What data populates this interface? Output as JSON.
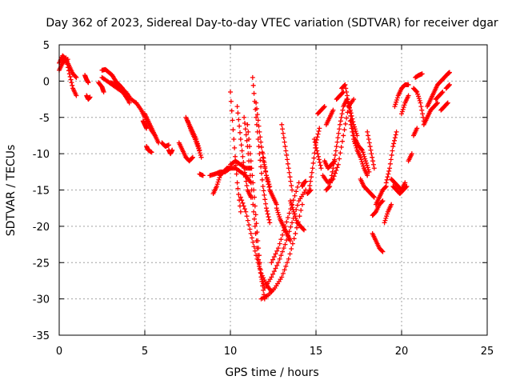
{
  "chart_data": {
    "type": "scatter",
    "title": "Day 362 of 2023, Sidereal Day-to-day VTEC variation (SDTVAR) for receiver dgar",
    "xlabel": "GPS time / hours",
    "ylabel": "SDTVAR / TECUs",
    "xlim": [
      0,
      25
    ],
    "ylim": [
      -35,
      5
    ],
    "x_ticks": [
      0,
      5,
      10,
      15,
      20,
      25
    ],
    "y_ticks": [
      5,
      0,
      -5,
      -10,
      -15,
      -20,
      -25,
      -30,
      -35
    ],
    "grid": true,
    "marker": "+",
    "color": "#ff0000",
    "series": [
      {
        "x": [
          0.0,
          0.2,
          0.4,
          0.6,
          0.8,
          1.0
        ],
        "y": [
          2.5,
          3.5,
          3.0,
          2.0,
          1.0,
          0.5
        ]
      },
      {
        "x": [
          0.2,
          0.4,
          0.6,
          0.8,
          1.0
        ],
        "y": [
          2.8,
          3.2,
          1.0,
          -1.0,
          -2.0
        ]
      },
      {
        "x": [
          0.0,
          0.2,
          0.5
        ],
        "y": [
          1.5,
          2.5,
          3.0
        ]
      },
      {
        "x": [
          1.5,
          1.6,
          1.7
        ],
        "y": [
          0.8,
          0.2,
          -0.2
        ]
      },
      {
        "x": [
          1.6,
          1.7,
          1.8
        ],
        "y": [
          -2.0,
          -2.5,
          -2.2
        ]
      },
      {
        "x": [
          2.3,
          2.5,
          2.6
        ],
        "y": [
          -0.2,
          -0.8,
          -1.5
        ]
      },
      {
        "x": [
          2.5,
          2.7,
          2.9,
          3.1,
          3.3,
          3.5
        ],
        "y": [
          1.5,
          1.6,
          1.2,
          0.8,
          0.0,
          -0.5
        ]
      },
      {
        "x": [
          2.5,
          2.8,
          3.1,
          3.4,
          3.7,
          4.0
        ],
        "y": [
          0.5,
          0.0,
          -0.5,
          -1.0,
          -1.5,
          -2.5
        ]
      },
      {
        "x": [
          3.0,
          3.3,
          3.6,
          3.9,
          4.2,
          4.5
        ],
        "y": [
          -0.2,
          -0.5,
          -1.0,
          -1.5,
          -2.5,
          -3.0
        ]
      },
      {
        "x": [
          3.5,
          3.7,
          3.9,
          4.1
        ],
        "y": [
          -0.5,
          -1.0,
          -2.0,
          -3.0
        ]
      },
      {
        "x": [
          4.5,
          4.8,
          5.0,
          5.3,
          5.6
        ],
        "y": [
          -3.0,
          -4.0,
          -5.0,
          -6.5,
          -7.5
        ]
      },
      {
        "x": [
          5.0,
          5.2,
          5.4,
          5.6,
          5.8
        ],
        "y": [
          -4.5,
          -5.5,
          -6.5,
          -7.5,
          -8.5
        ]
      },
      {
        "x": [
          4.9,
          5.0,
          5.1
        ],
        "y": [
          -5.5,
          -6.0,
          -6.5
        ]
      },
      {
        "x": [
          5.1,
          5.2,
          5.4
        ],
        "y": [
          -9.0,
          -9.5,
          -9.8
        ]
      },
      {
        "x": [
          6.0,
          6.2,
          6.4
        ],
        "y": [
          -8.5,
          -9.0,
          -8.8
        ]
      },
      {
        "x": [
          6.4,
          6.5,
          6.6
        ],
        "y": [
          -9.5,
          -10.0,
          -9.5
        ]
      },
      {
        "x": [
          7.0,
          7.2,
          7.4,
          7.6,
          7.8
        ],
        "y": [
          -8.5,
          -9.5,
          -10.5,
          -11.0,
          -10.5
        ]
      },
      {
        "x": [
          7.4,
          7.6,
          7.8,
          8.0,
          8.2
        ],
        "y": [
          -5.0,
          -6.0,
          -7.0,
          -8.0,
          -9.5
        ]
      },
      {
        "x": [
          7.5,
          7.7,
          7.9,
          8.1,
          8.3
        ],
        "y": [
          -5.5,
          -6.8,
          -7.8,
          -9.0,
          -10.5
        ]
      },
      {
        "x": [
          8.2,
          8.4
        ],
        "y": [
          -12.8,
          -13.0
        ]
      },
      {
        "x": [
          9.0,
          9.2,
          9.4,
          9.6,
          9.8,
          10.0
        ],
        "y": [
          -15.5,
          -14.5,
          -13.0,
          -12.5,
          -12.0,
          -12.0
        ]
      },
      {
        "x": [
          8.8,
          9.1,
          9.4,
          9.7,
          10.0
        ],
        "y": [
          -13.0,
          -12.8,
          -12.5,
          -12.5,
          -12.0
        ]
      },
      {
        "x": [
          10.0,
          10.3,
          10.6,
          10.9,
          11.2
        ],
        "y": [
          -12.0,
          -12.0,
          -12.5,
          -13.0,
          -14.0
        ]
      },
      {
        "x": [
          10.0,
          10.3,
          10.6,
          10.9,
          11.2
        ],
        "y": [
          -11.5,
          -11.0,
          -11.5,
          -12.0,
          -12.0
        ]
      },
      {
        "x": [
          10.0,
          10.2,
          10.4,
          10.6
        ],
        "y": [
          -1.5,
          -8.0,
          -14.0,
          -18.0
        ]
      },
      {
        "x": [
          10.4,
          10.6,
          10.8,
          11.0,
          11.2
        ],
        "y": [
          -3.5,
          -8.0,
          -12.0,
          -15.0,
          -16.0
        ]
      },
      {
        "x": [
          10.8,
          11.0,
          11.2,
          11.4,
          11.6,
          11.8,
          12.0
        ],
        "y": [
          -5.0,
          -9.0,
          -14.0,
          -19.0,
          -24.0,
          -27.0,
          -28.5
        ]
      },
      {
        "x": [
          11.0,
          11.2,
          11.4,
          11.6,
          11.8,
          12.0
        ],
        "y": [
          -6.0,
          -11.0,
          -16.0,
          -22.0,
          -27.0,
          -30.0
        ]
      },
      {
        "x": [
          10.6,
          10.9,
          11.2,
          11.5,
          11.8,
          12.1,
          12.4
        ],
        "y": [
          -16.0,
          -18.0,
          -21.0,
          -24.0,
          -26.5,
          -28.0,
          -29.0
        ]
      },
      {
        "x": [
          11.3,
          11.5,
          11.7,
          11.9,
          12.1,
          12.3
        ],
        "y": [
          0.5,
          -5.0,
          -10.0,
          -14.5,
          -17.5,
          -19.5
        ]
      },
      {
        "x": [
          11.5,
          11.7,
          11.9,
          12.1,
          12.3
        ],
        "y": [
          -3.0,
          -7.0,
          -10.5,
          -13.0,
          -14.5
        ]
      },
      {
        "x": [
          11.9,
          12.1,
          12.3,
          12.5,
          12.7
        ],
        "y": [
          -10.0,
          -13.0,
          -15.0,
          -16.0,
          -17.0
        ]
      },
      {
        "x": [
          11.8,
          12.2,
          12.6,
          13.0,
          13.4,
          13.8,
          14.2
        ],
        "y": [
          -30.0,
          -29.5,
          -28.5,
          -27.0,
          -24.5,
          -21.0,
          -17.0
        ]
      },
      {
        "x": [
          12.0,
          12.4,
          12.8,
          13.2,
          13.6,
          14.0,
          14.4
        ],
        "y": [
          -28.5,
          -27.0,
          -25.0,
          -22.5,
          -19.5,
          -16.5,
          -15.0
        ]
      },
      {
        "x": [
          12.4,
          12.8,
          13.2,
          13.6,
          14.0
        ],
        "y": [
          -25.0,
          -23.0,
          -20.0,
          -17.0,
          -14.0
        ]
      },
      {
        "x": [
          12.7,
          12.9,
          13.1,
          13.3,
          13.5
        ],
        "y": [
          -17.5,
          -19.0,
          -20.0,
          -21.0,
          -22.0
        ]
      },
      {
        "x": [
          13.0,
          13.2,
          13.4,
          13.6
        ],
        "y": [
          -6.0,
          -9.0,
          -12.0,
          -15.0
        ]
      },
      {
        "x": [
          13.5,
          13.7,
          13.9,
          14.1,
          14.3
        ],
        "y": [
          -16.5,
          -18.0,
          -19.5,
          -20.0,
          -20.5
        ]
      },
      {
        "x": [
          14.5,
          14.7
        ],
        "y": [
          -15.5,
          -15.0
        ]
      },
      {
        "x": [
          14.2,
          14.3,
          14.4
        ],
        "y": [
          -14.5,
          -14.0,
          -13.8
        ]
      },
      {
        "x": [
          14.6,
          14.8,
          15.0,
          15.2
        ],
        "y": [
          -15.0,
          -12.0,
          -8.5,
          -6.5
        ]
      },
      {
        "x": [
          14.9,
          15.1,
          15.3
        ],
        "y": [
          -8.0,
          -10.0,
          -12.0
        ]
      },
      {
        "x": [
          15.1,
          15.3,
          15.5
        ],
        "y": [
          -4.5,
          -4.0,
          -3.5
        ]
      },
      {
        "x": [
          15.6,
          15.8,
          16.0
        ],
        "y": [
          -6.0,
          -5.0,
          -4.0
        ]
      },
      {
        "x": [
          15.5,
          15.7,
          15.9,
          16.1
        ],
        "y": [
          -11.0,
          -12.0,
          -11.5,
          -11.0
        ]
      },
      {
        "x": [
          15.6,
          15.8,
          16.0,
          16.2,
          16.4,
          16.6,
          16.8
        ],
        "y": [
          -15.0,
          -14.5,
          -12.0,
          -9.0,
          -6.0,
          -3.5,
          -2.5
        ]
      },
      {
        "x": [
          15.4,
          15.7,
          16.0,
          16.3,
          16.6,
          16.9,
          17.2
        ],
        "y": [
          -13.0,
          -14.0,
          -13.5,
          -11.5,
          -7.5,
          -3.5,
          -2.5
        ]
      },
      {
        "x": [
          16.2,
          16.4,
          16.6
        ],
        "y": [
          -2.5,
          -2.0,
          -1.5
        ]
      },
      {
        "x": [
          16.5,
          16.7,
          16.9,
          17.1,
          17.3
        ],
        "y": [
          -1.0,
          -0.5,
          -3.0,
          -6.0,
          -8.5
        ]
      },
      {
        "x": [
          16.8,
          17.0,
          17.2,
          17.4
        ],
        "y": [
          -2.5,
          -4.0,
          -6.0,
          -7.5
        ]
      },
      {
        "x": [
          17.0,
          17.2,
          17.4,
          17.6,
          17.8,
          18.0
        ],
        "y": [
          -5.5,
          -8.0,
          -9.5,
          -10.5,
          -12.0,
          -13.0
        ]
      },
      {
        "x": [
          17.3,
          17.5,
          17.7,
          17.9,
          18.1
        ],
        "y": [
          -8.0,
          -9.0,
          -9.5,
          -11.0,
          -12.5
        ]
      },
      {
        "x": [
          17.6,
          17.8,
          18.0,
          18.2,
          18.4
        ],
        "y": [
          -13.5,
          -14.5,
          -15.0,
          -15.5,
          -16.0
        ]
      },
      {
        "x": [
          18.0,
          18.2,
          18.4
        ],
        "y": [
          -7.0,
          -9.5,
          -12.0
        ]
      },
      {
        "x": [
          18.3,
          18.5,
          18.7,
          18.9
        ],
        "y": [
          -18.5,
          -18.0,
          -17.0,
          -16.5
        ]
      },
      {
        "x": [
          18.3,
          18.5,
          18.7,
          18.9
        ],
        "y": [
          -21.0,
          -22.0,
          -23.0,
          -23.5
        ]
      },
      {
        "x": [
          18.5,
          18.7,
          18.9,
          19.1
        ],
        "y": [
          -17.0,
          -16.0,
          -15.0,
          -14.5
        ]
      },
      {
        "x": [
          19.0,
          19.2,
          19.4
        ],
        "y": [
          -19.5,
          -18.0,
          -17.0
        ]
      },
      {
        "x": [
          19.1,
          19.3,
          19.5,
          19.7
        ],
        "y": [
          -14.0,
          -12.0,
          -9.0,
          -7.0
        ]
      },
      {
        "x": [
          19.4,
          19.6,
          19.8,
          20.0,
          20.2
        ],
        "y": [
          -13.5,
          -14.0,
          -14.5,
          -15.0,
          -14.0
        ]
      },
      {
        "x": [
          19.5,
          19.7,
          19.9,
          20.1,
          20.3
        ],
        "y": [
          -14.5,
          -15.0,
          -15.5,
          -15.0,
          -14.5
        ]
      },
      {
        "x": [
          19.6,
          19.8,
          20.0,
          20.2,
          20.4
        ],
        "y": [
          -3.5,
          -2.0,
          -1.0,
          -0.5,
          -0.5
        ]
      },
      {
        "x": [
          20.0,
          20.2,
          20.4
        ],
        "y": [
          -4.5,
          -3.0,
          -2.0
        ]
      },
      {
        "x": [
          20.4,
          20.6
        ],
        "y": [
          -11.0,
          -10.0
        ]
      },
      {
        "x": [
          20.7,
          20.9
        ],
        "y": [
          -7.5,
          -6.5
        ]
      },
      {
        "x": [
          20.7,
          20.9,
          21.1,
          21.3
        ],
        "y": [
          -1.0,
          -1.5,
          -3.0,
          -5.5
        ]
      },
      {
        "x": [
          20.8,
          21.0,
          21.2
        ],
        "y": [
          0.5,
          0.8,
          1.0
        ]
      },
      {
        "x": [
          21.3,
          21.5,
          21.7,
          21.9,
          22.1
        ],
        "y": [
          -6.0,
          -5.0,
          -4.0,
          -3.5,
          -3.0
        ]
      },
      {
        "x": [
          21.5,
          21.7,
          21.9,
          22.1,
          22.3,
          22.5
        ],
        "y": [
          -3.5,
          -2.5,
          -1.5,
          -0.5,
          0.0,
          0.5
        ]
      },
      {
        "x": [
          22.0,
          22.2,
          22.4
        ],
        "y": [
          -2.5,
          -2.0,
          -1.5
        ]
      },
      {
        "x": [
          22.3,
          22.5,
          22.7
        ],
        "y": [
          -4.0,
          -3.5,
          -3.0
        ]
      },
      {
        "x": [
          22.5,
          22.7,
          22.8
        ],
        "y": [
          0.5,
          1.0,
          1.2
        ]
      },
      {
        "x": [
          22.6,
          22.8
        ],
        "y": [
          -1.0,
          -0.5
        ]
      }
    ]
  }
}
